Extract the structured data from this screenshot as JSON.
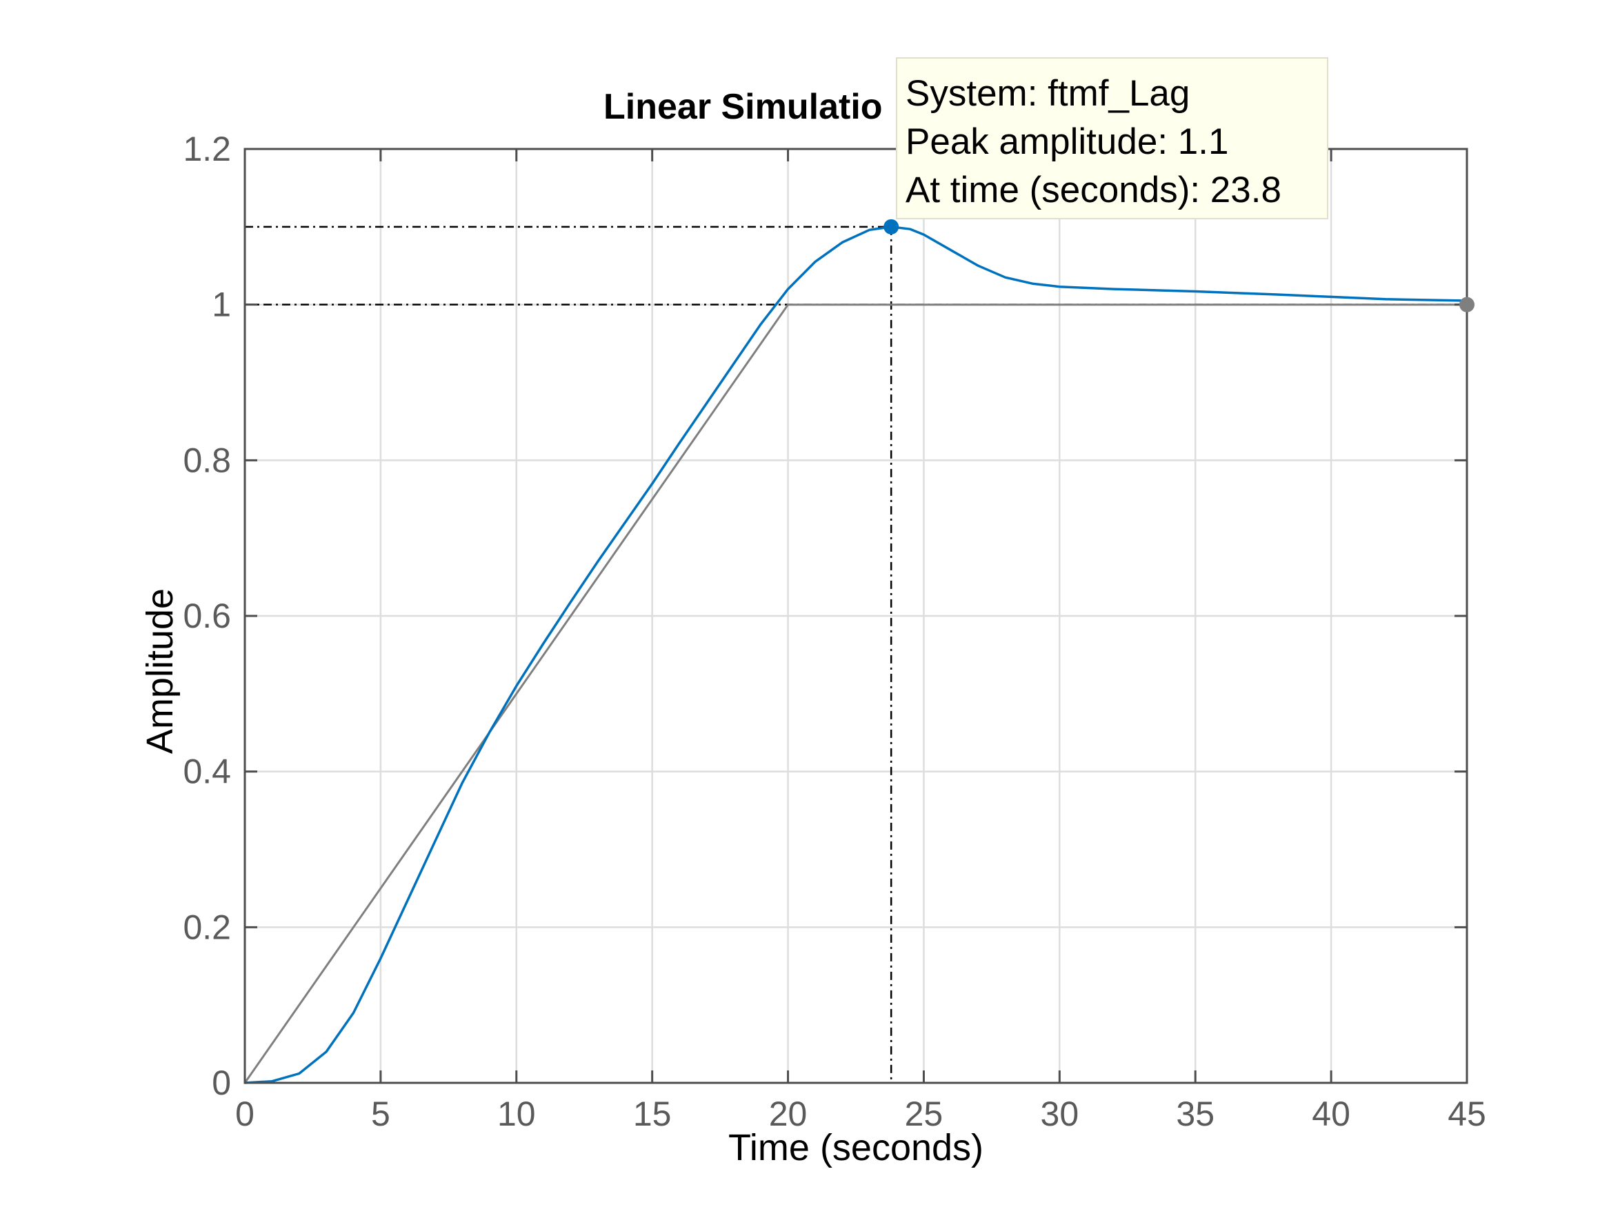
{
  "chart_data": {
    "type": "line",
    "title": "Linear Simulatio",
    "xlabel": "Time (seconds)",
    "ylabel": "Amplitude",
    "xlim": [
      0,
      45
    ],
    "ylim": [
      0,
      1.2
    ],
    "xticks": [
      "0",
      "5",
      "10",
      "15",
      "20",
      "25",
      "30",
      "35",
      "40",
      "45"
    ],
    "yticks": [
      "0",
      "0.2",
      "0.4",
      "0.6",
      "0.8",
      "1",
      "1.2"
    ],
    "grid": true,
    "series": [
      {
        "color": "#7f7f7f",
        "x": [
          0,
          20,
          45
        ],
        "y": [
          0,
          1.0,
          1.0
        ]
      },
      {
        "color": "#0072BD",
        "x": [
          0,
          1,
          2,
          3,
          4,
          5,
          6,
          7,
          8,
          9,
          10,
          11,
          12,
          13,
          14,
          15,
          16,
          17,
          18,
          19,
          20,
          21,
          22,
          23,
          23.8,
          24.5,
          25,
          26,
          27,
          28,
          29,
          30,
          32,
          35,
          38,
          40,
          42,
          45
        ],
        "y": [
          0,
          0.002,
          0.012,
          0.04,
          0.09,
          0.16,
          0.235,
          0.31,
          0.385,
          0.45,
          0.51,
          0.565,
          0.618,
          0.67,
          0.72,
          0.77,
          0.822,
          0.873,
          0.924,
          0.975,
          1.02,
          1.055,
          1.08,
          1.096,
          1.1,
          1.097,
          1.09,
          1.07,
          1.05,
          1.035,
          1.027,
          1.023,
          1.02,
          1.017,
          1.013,
          1.01,
          1.007,
          1.005
        ]
      }
    ],
    "markers": [
      {
        "x": 23.8,
        "y": 1.1,
        "color": "#0072BD"
      },
      {
        "x": 45,
        "y": 1.0,
        "color": "#7f7f7f"
      }
    ],
    "annotation": {
      "lines": [
        "System: ftmf_Lag",
        "Peak amplitude: 1.1",
        "At time (seconds): 23.8"
      ],
      "background": "#ffffee"
    },
    "reference_lines": {
      "peak": {
        "x": 23.8,
        "y": 1.1
      },
      "final": {
        "x": 45,
        "y": 1.0
      }
    }
  }
}
